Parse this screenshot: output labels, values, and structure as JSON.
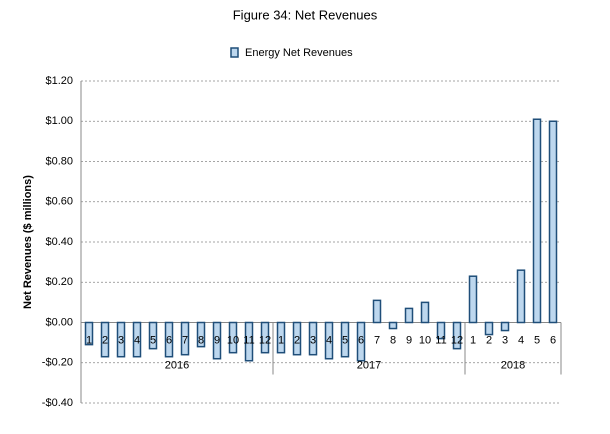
{
  "chart_data": {
    "type": "bar",
    "title": "Figure 34: Net Revenues",
    "y_label": "Net Revenues ($ millions)",
    "groups": [
      {
        "label": "2016",
        "categories": [
          "1",
          "2",
          "3",
          "4",
          "5",
          "6",
          "7",
          "8",
          "9",
          "10",
          "11",
          "12"
        ]
      },
      {
        "label": "2017",
        "categories": [
          "1",
          "2",
          "3",
          "4",
          "5",
          "6",
          "7",
          "8",
          "9",
          "10",
          "11",
          "12"
        ]
      },
      {
        "label": "2018",
        "categories": [
          "1",
          "2",
          "3",
          "4",
          "5",
          "6"
        ]
      }
    ],
    "series": [
      {
        "name": "Energy Net Revenues",
        "color": "#bdd7ee",
        "edge_color": "#1f4e79",
        "values": [
          -0.11,
          -0.17,
          -0.17,
          -0.17,
          -0.13,
          -0.17,
          -0.16,
          -0.12,
          -0.18,
          -0.15,
          -0.19,
          -0.15,
          -0.15,
          -0.16,
          -0.16,
          -0.18,
          -0.17,
          -0.19,
          0.11,
          -0.03,
          0.07,
          0.1,
          -0.08,
          -0.13,
          0.23,
          -0.06,
          -0.04,
          0.26,
          1.01,
          1.0
        ]
      }
    ],
    "ylim": [
      -0.4,
      1.2
    ],
    "yticks": [
      {
        "value": -0.4,
        "label": "-$0.40"
      },
      {
        "value": -0.2,
        "label": "-$0.20"
      },
      {
        "value": 0,
        "label": "$0.00"
      },
      {
        "value": 0.2,
        "label": "$0.20"
      },
      {
        "value": 0.4,
        "label": "$0.40"
      },
      {
        "value": 0.6,
        "label": "$0.60"
      },
      {
        "value": 0.8,
        "label": "$0.80"
      },
      {
        "value": 1.0,
        "label": "$1.00"
      },
      {
        "value": 1.2,
        "label": "$1.20"
      }
    ],
    "grid": true,
    "legend": "top"
  }
}
